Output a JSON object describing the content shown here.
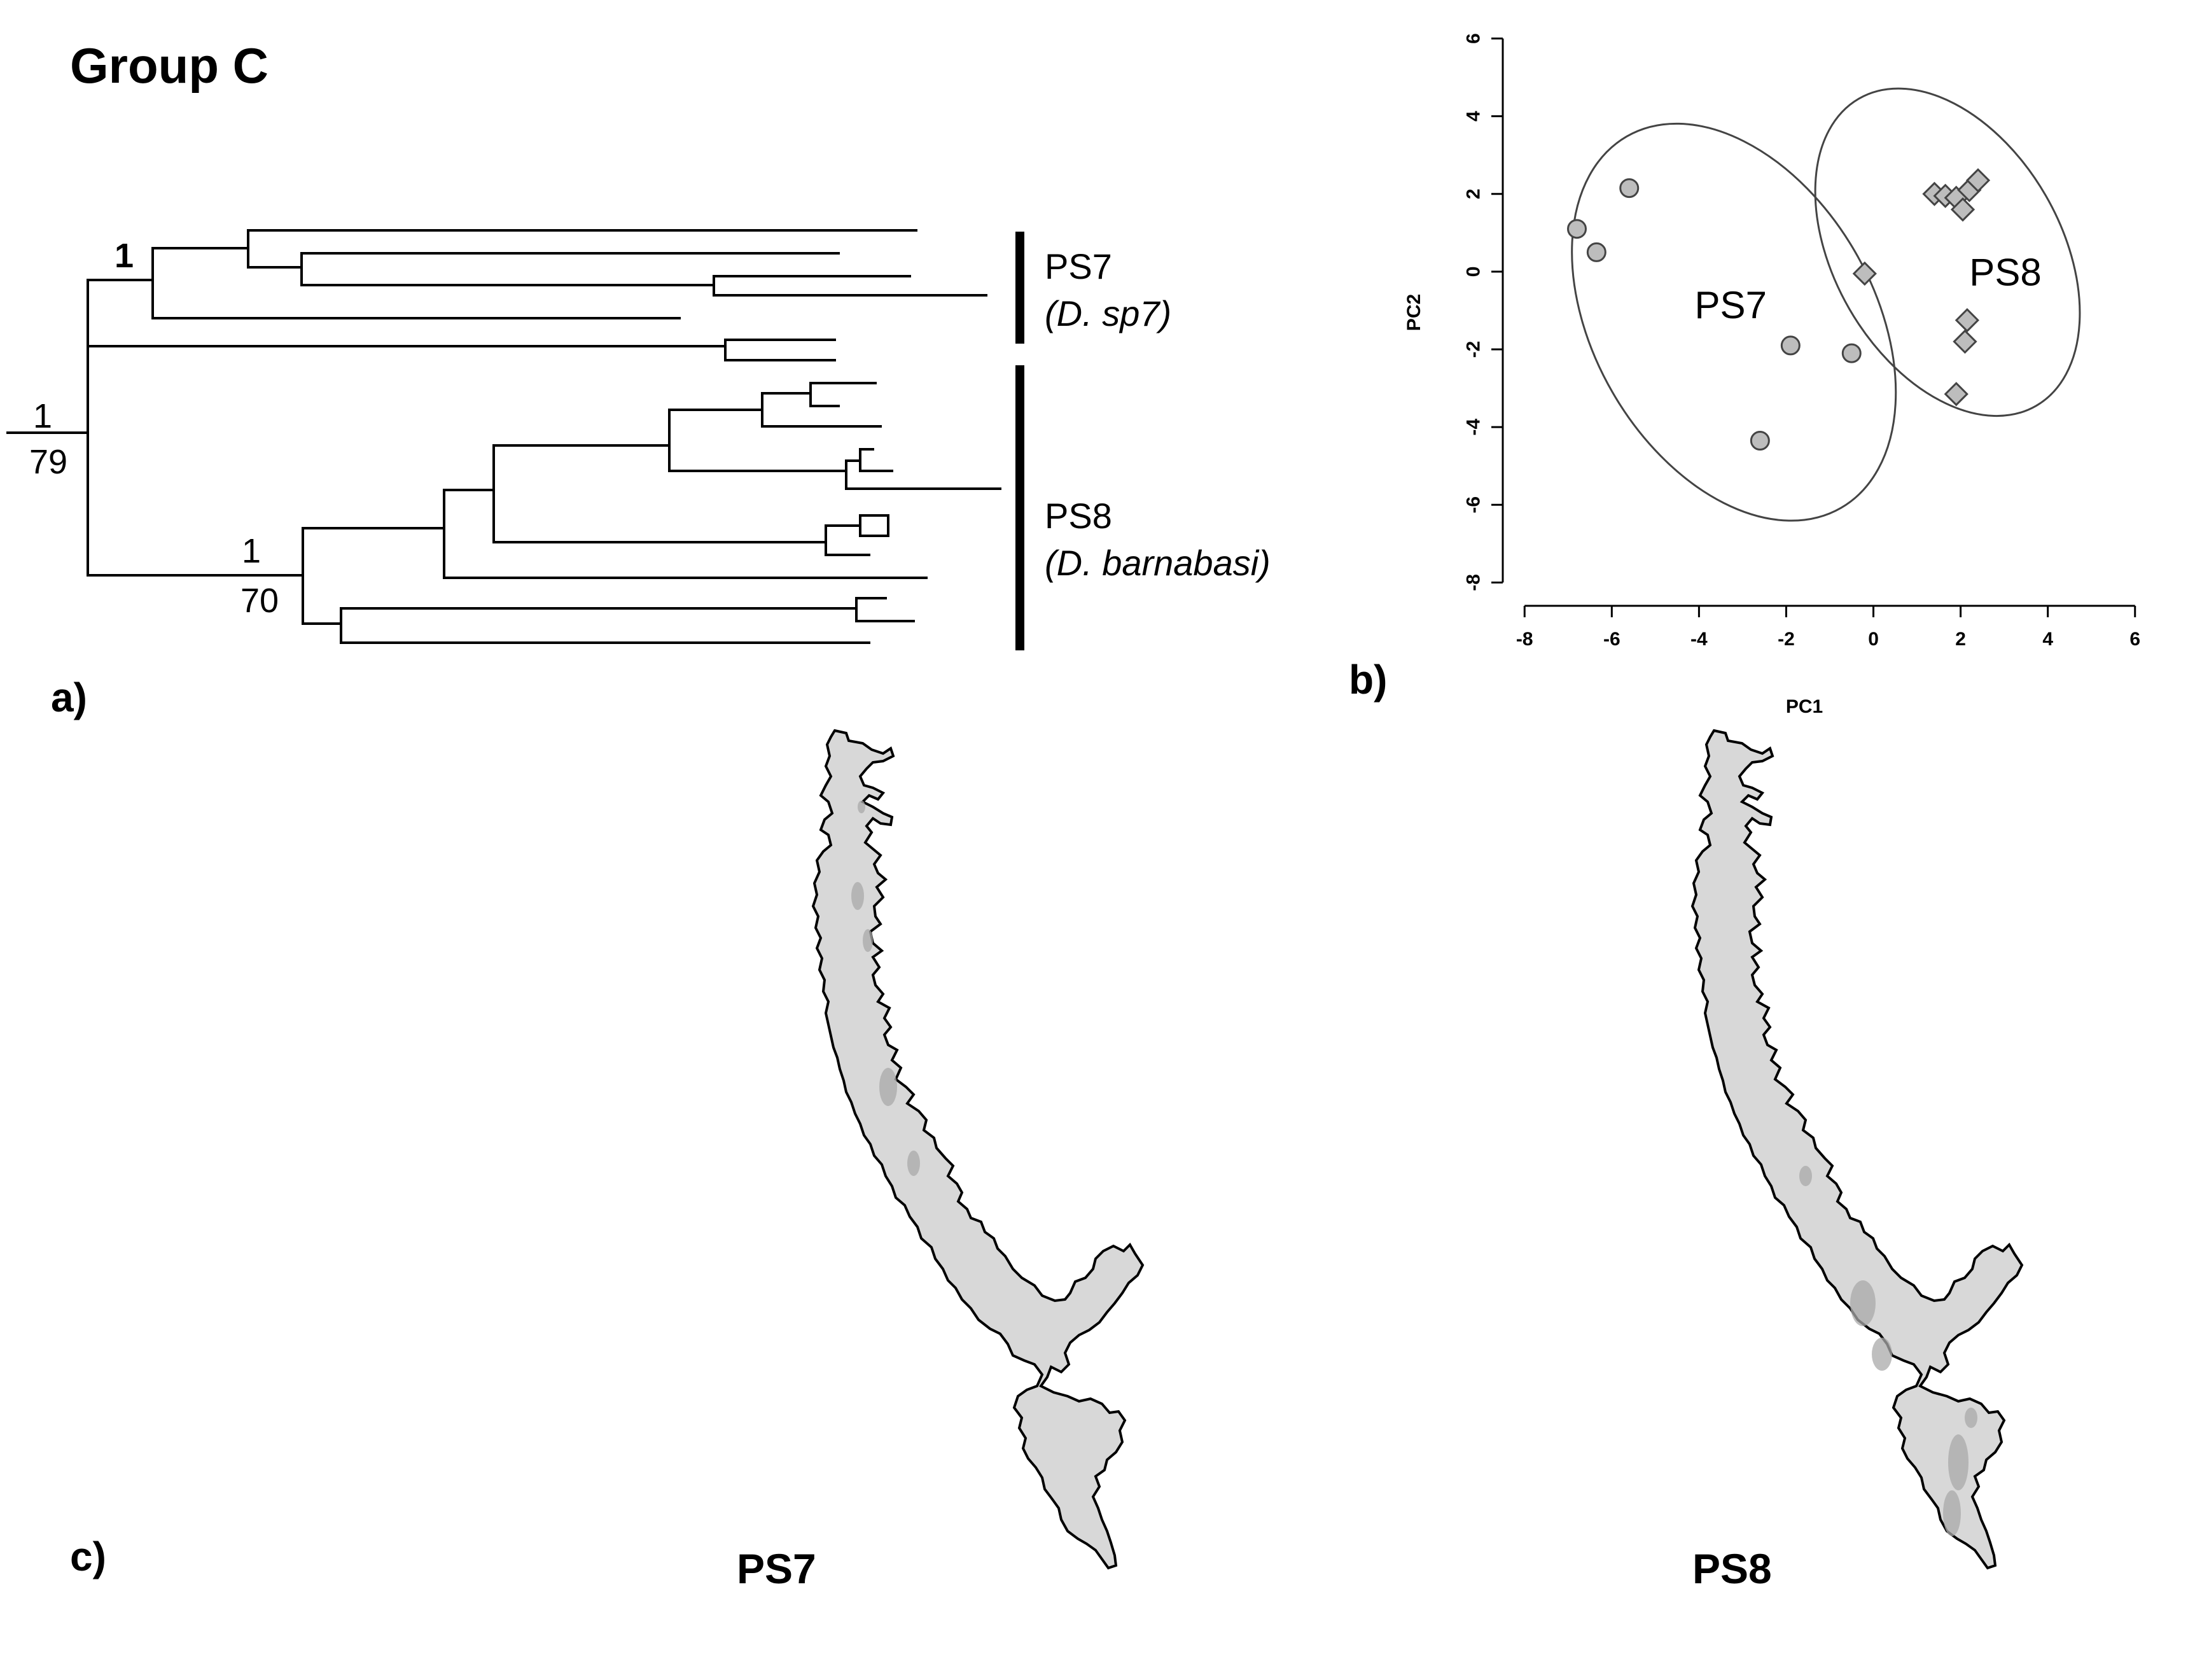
{
  "figure": {
    "title": "Group C",
    "panel_a_label": "a)",
    "panel_b_label": "b)",
    "panel_c_label": "c)"
  },
  "tree": {
    "clades": [
      {
        "name": "PS7",
        "species": "(D. sp7)"
      },
      {
        "name": "PS8",
        "species": "(D. barnabasi)"
      }
    ],
    "support": {
      "root_top": "1",
      "root_bottom": "79",
      "ps7_node": "1",
      "ps8_top": "1",
      "ps8_bottom": "70"
    }
  },
  "chart_data": {
    "type": "scatter",
    "title": "",
    "xlabel": "PC1",
    "ylabel": "PC2",
    "xlim": [
      -8.5,
      6.5
    ],
    "ylim": [
      -8.6,
      6.5
    ],
    "xticks": [
      -8,
      -6,
      -4,
      -2,
      0,
      2,
      4,
      6
    ],
    "yticks": [
      -8,
      -6,
      -4,
      -2,
      0,
      2,
      4,
      6
    ],
    "ytick_labels": [
      "-8",
      "-6",
      "-4",
      "-2",
      "0",
      "2",
      "4",
      "6"
    ],
    "grid": false,
    "series": [
      {
        "name": "PS7",
        "marker": "circle",
        "color": "#bdbdbd",
        "points": [
          [
            -6.8,
            1.1
          ],
          [
            -6.35,
            0.5
          ],
          [
            -5.6,
            2.15
          ],
          [
            -2.6,
            -4.35
          ],
          [
            -1.9,
            -1.9
          ],
          [
            -0.5,
            -2.1
          ]
        ]
      },
      {
        "name": "PS8",
        "marker": "diamond",
        "color": "#bdbdbd",
        "points": [
          [
            -0.2,
            -0.05
          ],
          [
            1.4,
            2.0
          ],
          [
            1.65,
            1.95
          ],
          [
            1.9,
            1.9
          ],
          [
            2.05,
            1.6
          ],
          [
            2.2,
            2.1
          ],
          [
            2.4,
            2.35
          ],
          [
            2.15,
            -1.25
          ],
          [
            2.1,
            -1.8
          ],
          [
            1.9,
            -3.15
          ]
        ]
      }
    ],
    "ellipses": [
      {
        "label": "PS7",
        "center": [
          -3.2,
          -1.3
        ],
        "radii": [
          3.4,
          5.2
        ],
        "rotation_deg": 30
      },
      {
        "label": "PS8",
        "center": [
          1.7,
          0.5
        ],
        "radii": [
          2.75,
          4.3
        ],
        "rotation_deg": 30
      }
    ]
  },
  "maps": {
    "left_caption": "PS7",
    "right_caption": "PS8",
    "fill_color": "#d8d8d8",
    "shade_color": "#a9a9a9"
  }
}
